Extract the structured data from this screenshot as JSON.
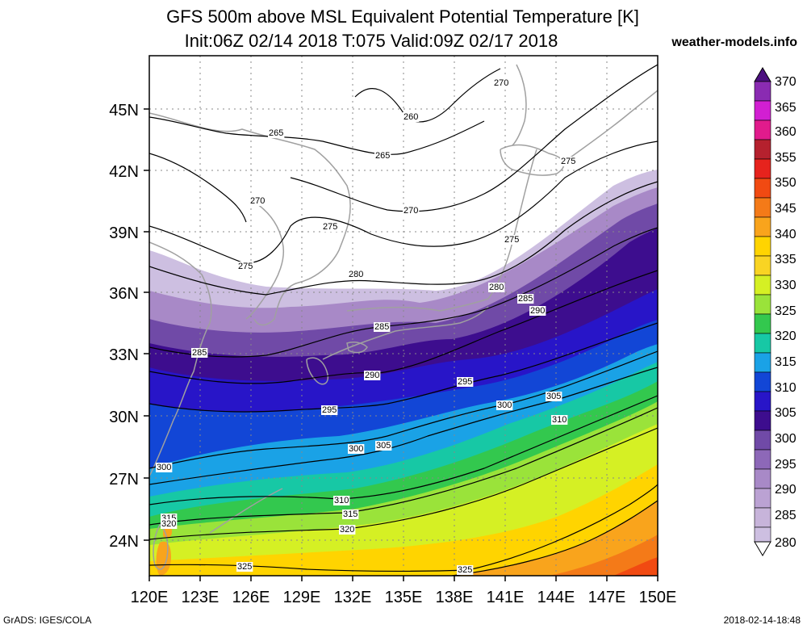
{
  "header": {
    "title_line1": "GFS 500m above MSL Equivalent Potential Temperature [K]",
    "title_line2": "Init:06Z 02/14 2018 T:075 Valid:09Z 02/17 2018",
    "site": "weather-models.info"
  },
  "footer": {
    "left": "GrADS: IGES/COLA",
    "right": "2018-02-14-18:48"
  },
  "map": {
    "lon_ticks": [
      "120E",
      "123E",
      "126E",
      "129E",
      "132E",
      "135E",
      "138E",
      "141E",
      "144E",
      "147E",
      "150E"
    ],
    "lat_ticks": [
      "24N",
      "27N",
      "30N",
      "33N",
      "36N",
      "39N",
      "42N",
      "45N"
    ],
    "lat_values": [
      24,
      27,
      30,
      33,
      36,
      39,
      42,
      45
    ],
    "lon_range": [
      120,
      150
    ],
    "lat_range": [
      22.5,
      47.5
    ]
  },
  "colorbar": {
    "levels": [
      "370",
      "365",
      "360",
      "355",
      "350",
      "345",
      "340",
      "335",
      "330",
      "325",
      "320",
      "315",
      "310",
      "305",
      "300",
      "295",
      "290",
      "285",
      "280"
    ],
    "colors": [
      "#4c1080",
      "#8a2bb2",
      "#d21fd2",
      "#e11b8c",
      "#b5212e",
      "#e6231d",
      "#f14a12",
      "#f47a18",
      "#f9a41c",
      "#ffd400",
      "#d5f024",
      "#9ae33a",
      "#33c84e",
      "#17c8a5",
      "#1aa2e6",
      "#1246d6",
      "#2815c8",
      "#3d0d8e",
      "#704aa7",
      "#a889c7",
      "#cdbfe1"
    ]
  },
  "contour_labels": [
    {
      "text": "260"
    },
    {
      "text": "265"
    },
    {
      "text": "265"
    },
    {
      "text": "270"
    },
    {
      "text": "270"
    },
    {
      "text": "270"
    },
    {
      "text": "275"
    },
    {
      "text": "275"
    },
    {
      "text": "275"
    },
    {
      "text": "275"
    },
    {
      "text": "280"
    },
    {
      "text": "280"
    },
    {
      "text": "285"
    },
    {
      "text": "285"
    },
    {
      "text": "285"
    },
    {
      "text": "290"
    },
    {
      "text": "290"
    },
    {
      "text": "295"
    },
    {
      "text": "295"
    },
    {
      "text": "300"
    },
    {
      "text": "300"
    },
    {
      "text": "300"
    },
    {
      "text": "305"
    },
    {
      "text": "305"
    },
    {
      "text": "310"
    },
    {
      "text": "310"
    },
    {
      "text": "315"
    },
    {
      "text": "315"
    },
    {
      "text": "320"
    },
    {
      "text": "320"
    },
    {
      "text": "325"
    },
    {
      "text": "325"
    }
  ]
}
